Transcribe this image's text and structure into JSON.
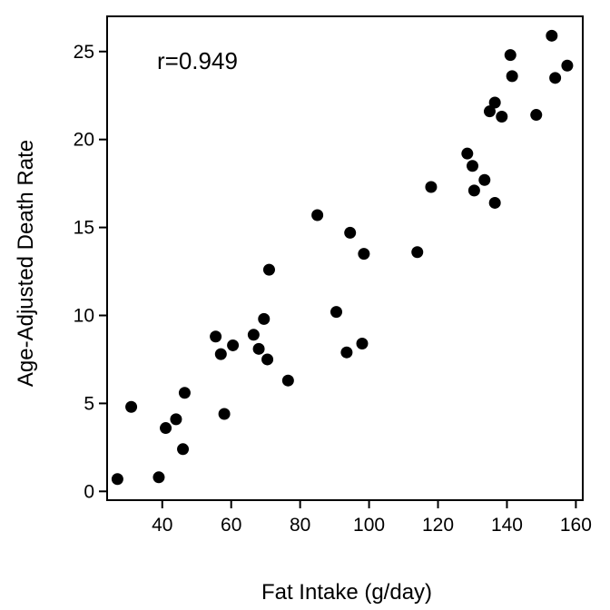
{
  "chart_data": {
    "type": "scatter",
    "title": "",
    "xlabel": "Fat Intake (g/day)",
    "ylabel": "Age-Adjusted Death Rate",
    "xlim": [
      24,
      162
    ],
    "ylim": [
      -0.5,
      27
    ],
    "xticks": [
      40,
      60,
      80,
      100,
      120,
      140,
      160
    ],
    "yticks": [
      0,
      5,
      10,
      15,
      20,
      25
    ],
    "xtick_labels": [
      "40",
      "60",
      "80",
      "100",
      "120",
      "140",
      "160"
    ],
    "ytick_labels": [
      "0",
      "5",
      "10",
      "15",
      "20",
      "25"
    ],
    "grid": false,
    "annotation": "r=0.949",
    "marker_color": "#000000",
    "points": [
      [
        27,
        0.7
      ],
      [
        31,
        4.8
      ],
      [
        39,
        0.8
      ],
      [
        41,
        3.6
      ],
      [
        44,
        4.1
      ],
      [
        46,
        2.4
      ],
      [
        46.5,
        5.6
      ],
      [
        55.5,
        8.8
      ],
      [
        57,
        7.8
      ],
      [
        58,
        4.4
      ],
      [
        60.5,
        8.3
      ],
      [
        66.5,
        8.9
      ],
      [
        68,
        8.1
      ],
      [
        69.5,
        9.8
      ],
      [
        70.5,
        7.5
      ],
      [
        71,
        12.6
      ],
      [
        76.5,
        6.3
      ],
      [
        85,
        15.7
      ],
      [
        90.5,
        10.2
      ],
      [
        93.5,
        7.9
      ],
      [
        94.5,
        14.7
      ],
      [
        98,
        8.4
      ],
      [
        98.5,
        13.5
      ],
      [
        114,
        13.6
      ],
      [
        118,
        17.3
      ],
      [
        128.5,
        19.2
      ],
      [
        130,
        18.5
      ],
      [
        130.5,
        17.1
      ],
      [
        133.5,
        17.7
      ],
      [
        135,
        21.6
      ],
      [
        136.5,
        22.1
      ],
      [
        136.5,
        16.4
      ],
      [
        138.5,
        21.3
      ],
      [
        141,
        24.8
      ],
      [
        141.5,
        23.6
      ],
      [
        148.5,
        21.4
      ],
      [
        153,
        25.9
      ],
      [
        154,
        23.5
      ],
      [
        157.5,
        24.2
      ]
    ]
  }
}
